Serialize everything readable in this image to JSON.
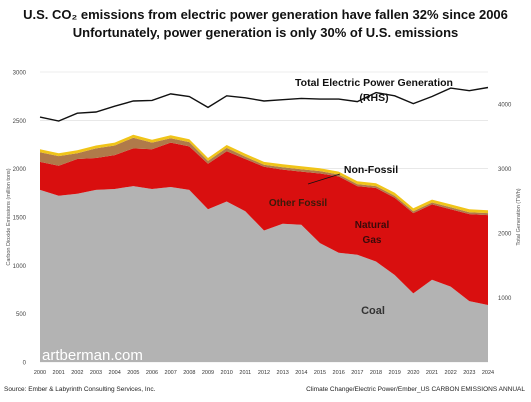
{
  "title": "U.S. CO₂ emissions from electric power generation have fallen 32% since 2006",
  "subtitle": "Unfortunately, power generation is only 30% of U.S. emissions",
  "footer": {
    "source": "Source: Ember  & Labyrinth Consulting Services, Inc.",
    "credit": "Climate Change/Electric Power/Ember_US CARBON EMISSIONS ANNUAL"
  },
  "watermark": "artberman.com",
  "colors": {
    "coal": "#b3b3b3",
    "natural_gas": "#d90f0f",
    "other_fossil": "#b07a4a",
    "non_fossil": "#f0c419",
    "generation": "#111111"
  },
  "chart_data": {
    "type": "area",
    "x": [
      2000,
      2001,
      2002,
      2003,
      2004,
      2005,
      2006,
      2007,
      2008,
      2009,
      2010,
      2011,
      2012,
      2013,
      2014,
      2015,
      2016,
      2017,
      2018,
      2019,
      2020,
      2021,
      2022,
      2023,
      2024
    ],
    "xticks": [
      "2000",
      "2001",
      "2002",
      "2003",
      "2004",
      "2005",
      "2006",
      "2007",
      "2008",
      "2009",
      "2010",
      "2011",
      "2012",
      "2013",
      "2014",
      "2015",
      "2016",
      "2017",
      "2018",
      "2019",
      "2020",
      "2021",
      "2022",
      "2023",
      "2024"
    ],
    "ylabel": "Carbon Dioxide Emissions (million tons)",
    "y2label": "Total Generation (TWh)",
    "ylim": [
      0,
      3000
    ],
    "y2lim": [
      0,
      4500
    ],
    "yticks": [
      0,
      500,
      1000,
      1500,
      2000,
      2500,
      3000
    ],
    "y2ticks": [
      1000,
      2000,
      3000,
      4000
    ],
    "stacked_series": [
      {
        "name": "Coal",
        "label": "Coal",
        "values": [
          1780,
          1720,
          1740,
          1780,
          1790,
          1820,
          1790,
          1810,
          1780,
          1580,
          1660,
          1560,
          1360,
          1430,
          1420,
          1230,
          1130,
          1110,
          1040,
          900,
          710,
          850,
          780,
          630,
          590
        ]
      },
      {
        "name": "Natural Gas",
        "label": "Natural\nGas",
        "values": [
          290,
          310,
          360,
          330,
          350,
          390,
          410,
          460,
          450,
          470,
          520,
          540,
          660,
          560,
          550,
          720,
          790,
          710,
          760,
          800,
          830,
          780,
          800,
          900,
          930
        ]
      },
      {
        "name": "Other Fossil",
        "label": "Other Fossil",
        "values": [
          100,
          100,
          60,
          100,
          100,
          110,
          70,
          45,
          45,
          30,
          35,
          25,
          20,
          25,
          25,
          25,
          20,
          20,
          20,
          20,
          20,
          20,
          20,
          20,
          20
        ]
      },
      {
        "name": "Non-Fossil",
        "label": "Non-Fossil",
        "values": [
          30,
          30,
          30,
          30,
          30,
          30,
          30,
          30,
          30,
          30,
          30,
          30,
          30,
          30,
          30,
          30,
          30,
          30,
          30,
          30,
          30,
          30,
          30,
          30,
          30
        ]
      }
    ],
    "line_series": {
      "name": "Total Electric Power Generation",
      "label": "Total Electric Power Generation",
      "label2": "(RHS)",
      "axis": "right",
      "values": [
        3800,
        3740,
        3860,
        3880,
        3970,
        4050,
        4060,
        4160,
        4120,
        3950,
        4130,
        4100,
        4050,
        4070,
        4090,
        4080,
        4080,
        4040,
        4180,
        4130,
        4010,
        4120,
        4250,
        4210,
        4260
      ]
    },
    "grid": true
  }
}
